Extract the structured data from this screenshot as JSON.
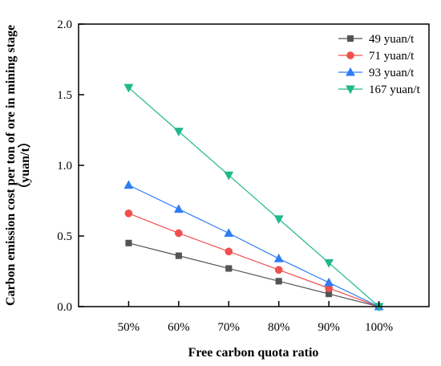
{
  "chart_data": {
    "type": "line",
    "title": "",
    "xlabel": "Free carbon quota ratio",
    "ylabel_line1": "Carbon emission cost per ton of ore in mining stage",
    "ylabel_line2": "（yuan/t）",
    "categories": [
      "50%",
      "60%",
      "70%",
      "80%",
      "90%",
      "100%"
    ],
    "x": [
      50,
      60,
      70,
      80,
      90,
      100
    ],
    "xlim": [
      40,
      110
    ],
    "ylim": [
      0,
      2.0
    ],
    "yticks": [
      0,
      0.5,
      1.0,
      1.5,
      2.0
    ],
    "ytick_labels": [
      "0.0",
      "0.5",
      "1.0",
      "1.5",
      "2.0"
    ],
    "grid": false,
    "legend_position": "top-right",
    "series": [
      {
        "name": "49 yuan/t",
        "marker": "square",
        "color": "#545454",
        "values": [
          0.45,
          0.36,
          0.27,
          0.18,
          0.09,
          0.0
        ]
      },
      {
        "name": "71 yuan/t",
        "marker": "circle",
        "color": "#f0504e",
        "values": [
          0.66,
          0.52,
          0.39,
          0.26,
          0.13,
          0.0
        ]
      },
      {
        "name": "93 yuan/t",
        "marker": "triangle-up",
        "color": "#2f7df6",
        "values": [
          0.86,
          0.69,
          0.52,
          0.34,
          0.17,
          0.0
        ]
      },
      {
        "name": "167 yuan/t",
        "marker": "triangle-down",
        "color": "#1fb88a",
        "values": [
          1.55,
          1.24,
          0.93,
          0.62,
          0.31,
          0.0
        ]
      }
    ]
  }
}
